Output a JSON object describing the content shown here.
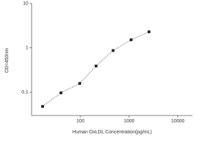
{
  "chart_data": {
    "type": "scatter",
    "x_label": "Human OxLDL Concentration(pg/mL)",
    "y_label": "OD=450nm",
    "x": [
      16.8,
      40,
      97,
      210,
      470,
      1100,
      2560
    ],
    "values": [
      0.048,
      0.097,
      0.158,
      0.39,
      0.87,
      1.52,
      2.3
    ],
    "color": "#222222",
    "line_style": "dotted",
    "xscale": "log",
    "yscale": "log",
    "xlim": [
      10,
      20000
    ],
    "xticks": [
      100,
      1000,
      10000
    ],
    "ylim": [
      0.03,
      10
    ],
    "yticks": [
      0.1,
      1,
      10
    ]
  }
}
